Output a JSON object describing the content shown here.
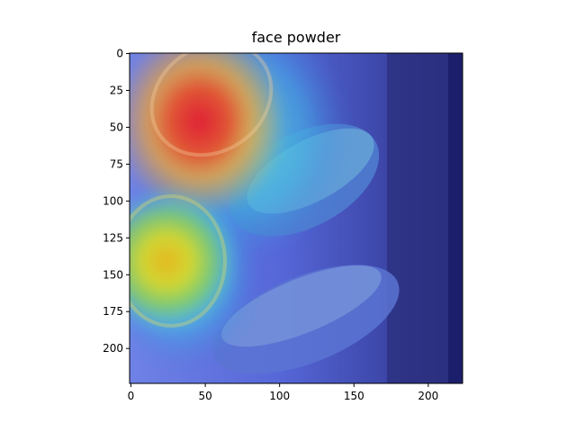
{
  "figure": {
    "title": "face powder",
    "image_description_colors": {
      "background_dark": "#1b1f6b",
      "heat_red": "#e3223a",
      "heat_yellow": "#d8d826",
      "heat_cyan": "#45d6e6",
      "heat_blue": "#5b6bd6"
    },
    "x_axis": {
      "range": [
        0,
        224
      ],
      "ticks": [
        {
          "label": "0"
        },
        {
          "label": "50"
        },
        {
          "label": "100"
        },
        {
          "label": "150"
        },
        {
          "label": "200"
        }
      ]
    },
    "y_axis": {
      "range": [
        0,
        224
      ],
      "inverted": true,
      "ticks": [
        {
          "label": "0"
        },
        {
          "label": "25"
        },
        {
          "label": "50"
        },
        {
          "label": "75"
        },
        {
          "label": "100"
        },
        {
          "label": "125"
        },
        {
          "label": "150"
        },
        {
          "label": "175"
        },
        {
          "label": "200"
        }
      ]
    }
  }
}
